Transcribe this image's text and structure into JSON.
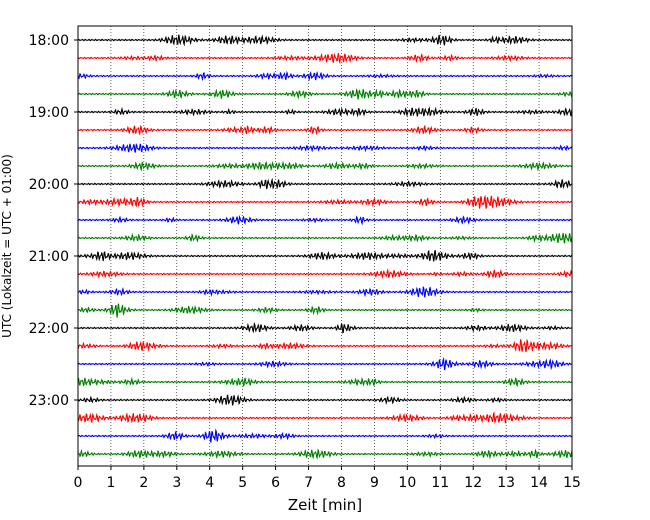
{
  "chart_data": {
    "type": "line",
    "title": "",
    "xlabel": "Zeit  [min]",
    "ylabel": "UTC (Lokalzeit = UTC + 01:00)",
    "xlim": [
      0,
      15
    ],
    "x_ticks": [
      "0",
      "1",
      "2",
      "3",
      "4",
      "5",
      "6",
      "7",
      "8",
      "9",
      "10",
      "11",
      "12",
      "13",
      "14",
      "15"
    ],
    "y_ticks": [
      "18:00",
      "19:00",
      "20:00",
      "21:00",
      "22:00",
      "23:00"
    ],
    "grid": "vertical dotted",
    "trace_colors": [
      "#000000",
      "#ff0000",
      "#0000ff",
      "#008000"
    ],
    "traces": [
      "18:00",
      "18:15",
      "18:30",
      "18:45",
      "19:00",
      "19:15",
      "19:30",
      "19:45",
      "20:00",
      "20:15",
      "20:30",
      "20:45",
      "21:00",
      "21:15",
      "21:30",
      "21:45",
      "22:00",
      "22:15",
      "22:30",
      "22:45",
      "23:00",
      "23:15",
      "23:30",
      "23:45"
    ]
  }
}
